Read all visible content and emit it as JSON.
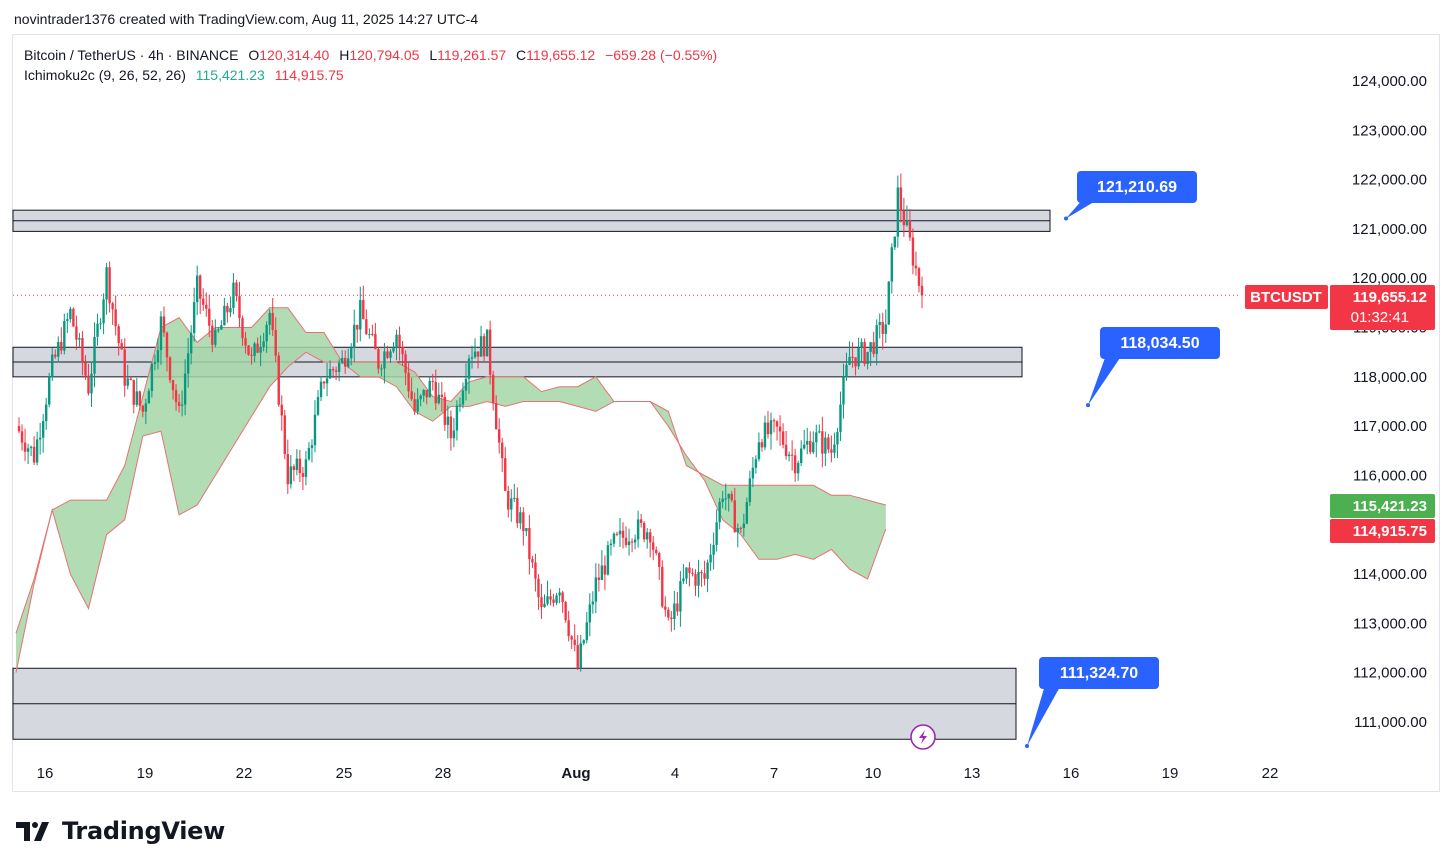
{
  "header": {
    "credit": "novintrader1376 created with TradingView.com, Aug 11, 2025 14:27 UTC-4"
  },
  "legend": {
    "symbol": "Bitcoin / TetherUS · 4h · BINANCE",
    "o_label": "O",
    "o_value": "120,314.40",
    "h_label": "H",
    "h_value": "120,794.05",
    "l_label": "L",
    "l_value": "119,261.57",
    "c_label": "C",
    "c_value": "119,655.12",
    "change": "−659.28 (−0.55%)",
    "indicator": "Ichimoku2c (9, 26, 52, 26)",
    "ind_value_1": "115,421.23",
    "ind_value_2": "114,915.75"
  },
  "price_labels": {
    "symbol_tag": "BTCUSDT",
    "last_price": "119,655.12",
    "countdown": "01:32:41",
    "cloud_top": "115,421.23",
    "cloud_bottom": "114,915.75"
  },
  "callouts": [
    {
      "text": "121,210.69",
      "price": 121210.69
    },
    {
      "text": "118,034.50",
      "price": 118034.5
    },
    {
      "text": "111,324.70",
      "price": 111324.7
    }
  ],
  "footer": {
    "logo_text": "TradingView"
  },
  "colors": {
    "up": "#089981",
    "down": "#f23645",
    "cloud": "#a5d6a7",
    "cloud_edge": "#e57373",
    "callout": "#2962ff",
    "zone_fill": "#d1d4dc"
  },
  "chart_data": {
    "type": "candlestick",
    "symbol": "BTCUSDT",
    "interval": "4h",
    "exchange": "BINANCE",
    "last_close": 119655.12,
    "x_ticks": [
      "16",
      "19",
      "22",
      "25",
      "28",
      "Aug",
      "4",
      "7",
      "10",
      "13",
      "16",
      "19",
      "22"
    ],
    "y_ticks": [
      "124,000.00",
      "123,000.00",
      "122,000.00",
      "121,000.00",
      "120,000.00",
      "119,000.00",
      "118,000.00",
      "117,000.00",
      "116,000.00",
      "115,000.00",
      "114,000.00",
      "113,000.00",
      "112,000.00",
      "111,000.00"
    ],
    "ylim": [
      110600,
      124400
    ],
    "zones": [
      {
        "top": 121380,
        "bottom": 120950
      },
      {
        "top": 118600,
        "bottom": 118000
      },
      {
        "top": 112090,
        "bottom": 110650
      }
    ],
    "series_keypoints": [
      [
        0,
        117000
      ],
      [
        6,
        116400
      ],
      [
        12,
        118200
      ],
      [
        18,
        119300
      ],
      [
        24,
        117800
      ],
      [
        30,
        120100
      ],
      [
        36,
        118000
      ],
      [
        42,
        117300
      ],
      [
        48,
        119100
      ],
      [
        54,
        117200
      ],
      [
        60,
        119800
      ],
      [
        66,
        118700
      ],
      [
        72,
        119700
      ],
      [
        78,
        118300
      ],
      [
        84,
        119300
      ],
      [
        90,
        116000
      ],
      [
        96,
        116200
      ],
      [
        102,
        118000
      ],
      [
        108,
        118300
      ],
      [
        114,
        119300
      ],
      [
        120,
        118300
      ],
      [
        126,
        118900
      ],
      [
        132,
        117300
      ],
      [
        138,
        117900
      ],
      [
        144,
        116800
      ],
      [
        150,
        118500
      ],
      [
        156,
        118700
      ],
      [
        162,
        115600
      ],
      [
        168,
        115000
      ],
      [
        174,
        113200
      ],
      [
        180,
        113800
      ],
      [
        186,
        112100
      ],
      [
        192,
        113800
      ],
      [
        198,
        114600
      ],
      [
        204,
        114900
      ],
      [
        210,
        114900
      ],
      [
        216,
        112900
      ],
      [
        222,
        114000
      ],
      [
        228,
        113900
      ],
      [
        234,
        115700
      ],
      [
        240,
        114800
      ],
      [
        246,
        116800
      ],
      [
        252,
        116900
      ],
      [
        258,
        116300
      ],
      [
        264,
        116800
      ],
      [
        270,
        116500
      ],
      [
        276,
        118400
      ],
      [
        282,
        118500
      ],
      [
        288,
        119100
      ],
      [
        292,
        121700
      ],
      [
        296,
        120700
      ],
      [
        300,
        119655
      ]
    ],
    "cloud_upper": [
      [
        0,
        112800
      ],
      [
        6,
        113900
      ],
      [
        12,
        115300
      ],
      [
        18,
        115500
      ],
      [
        24,
        115500
      ],
      [
        30,
        115500
      ],
      [
        36,
        116200
      ],
      [
        42,
        117600
      ],
      [
        48,
        119000
      ],
      [
        54,
        119200
      ],
      [
        60,
        118700
      ],
      [
        66,
        119000
      ],
      [
        72,
        119000
      ],
      [
        78,
        119000
      ],
      [
        84,
        119400
      ],
      [
        90,
        119400
      ],
      [
        96,
        118900
      ],
      [
        102,
        118900
      ],
      [
        108,
        118300
      ],
      [
        114,
        118300
      ],
      [
        120,
        118300
      ],
      [
        126,
        118300
      ],
      [
        132,
        118100
      ],
      [
        138,
        117600
      ],
      [
        144,
        117500
      ],
      [
        150,
        117900
      ],
      [
        156,
        118000
      ],
      [
        162,
        118000
      ],
      [
        168,
        118000
      ],
      [
        174,
        117700
      ],
      [
        180,
        117800
      ],
      [
        186,
        117800
      ],
      [
        192,
        118000
      ],
      [
        198,
        117500
      ],
      [
        204,
        117500
      ],
      [
        210,
        117500
      ],
      [
        216,
        117300
      ],
      [
        222,
        116200
      ],
      [
        228,
        116000
      ],
      [
        234,
        115800
      ],
      [
        240,
        115800
      ],
      [
        246,
        115800
      ],
      [
        252,
        115800
      ],
      [
        258,
        115800
      ],
      [
        264,
        115800
      ],
      [
        270,
        115600
      ],
      [
        276,
        115600
      ],
      [
        282,
        115500
      ],
      [
        288,
        115400
      ]
    ],
    "cloud_lower": [
      [
        0,
        112000
      ],
      [
        6,
        113800
      ],
      [
        12,
        115300
      ],
      [
        18,
        114000
      ],
      [
        24,
        113300
      ],
      [
        30,
        114800
      ],
      [
        36,
        115100
      ],
      [
        42,
        116800
      ],
      [
        48,
        116900
      ],
      [
        54,
        115200
      ],
      [
        60,
        115400
      ],
      [
        66,
        116000
      ],
      [
        72,
        116600
      ],
      [
        78,
        117200
      ],
      [
        84,
        117800
      ],
      [
        90,
        118200
      ],
      [
        96,
        118500
      ],
      [
        102,
        118300
      ],
      [
        108,
        118300
      ],
      [
        114,
        118000
      ],
      [
        120,
        118000
      ],
      [
        126,
        117800
      ],
      [
        132,
        117300
      ],
      [
        138,
        117100
      ],
      [
        144,
        117400
      ],
      [
        150,
        117400
      ],
      [
        156,
        117500
      ],
      [
        162,
        117400
      ],
      [
        168,
        117500
      ],
      [
        174,
        117500
      ],
      [
        180,
        117500
      ],
      [
        186,
        117400
      ],
      [
        192,
        117300
      ],
      [
        198,
        117500
      ],
      [
        204,
        117500
      ],
      [
        210,
        117500
      ],
      [
        216,
        117000
      ],
      [
        222,
        116400
      ],
      [
        228,
        115900
      ],
      [
        234,
        115100
      ],
      [
        240,
        114800
      ],
      [
        246,
        114300
      ],
      [
        252,
        114300
      ],
      [
        258,
        114400
      ],
      [
        264,
        114300
      ],
      [
        270,
        114500
      ],
      [
        276,
        114100
      ],
      [
        282,
        113900
      ],
      [
        288,
        114915
      ]
    ]
  }
}
